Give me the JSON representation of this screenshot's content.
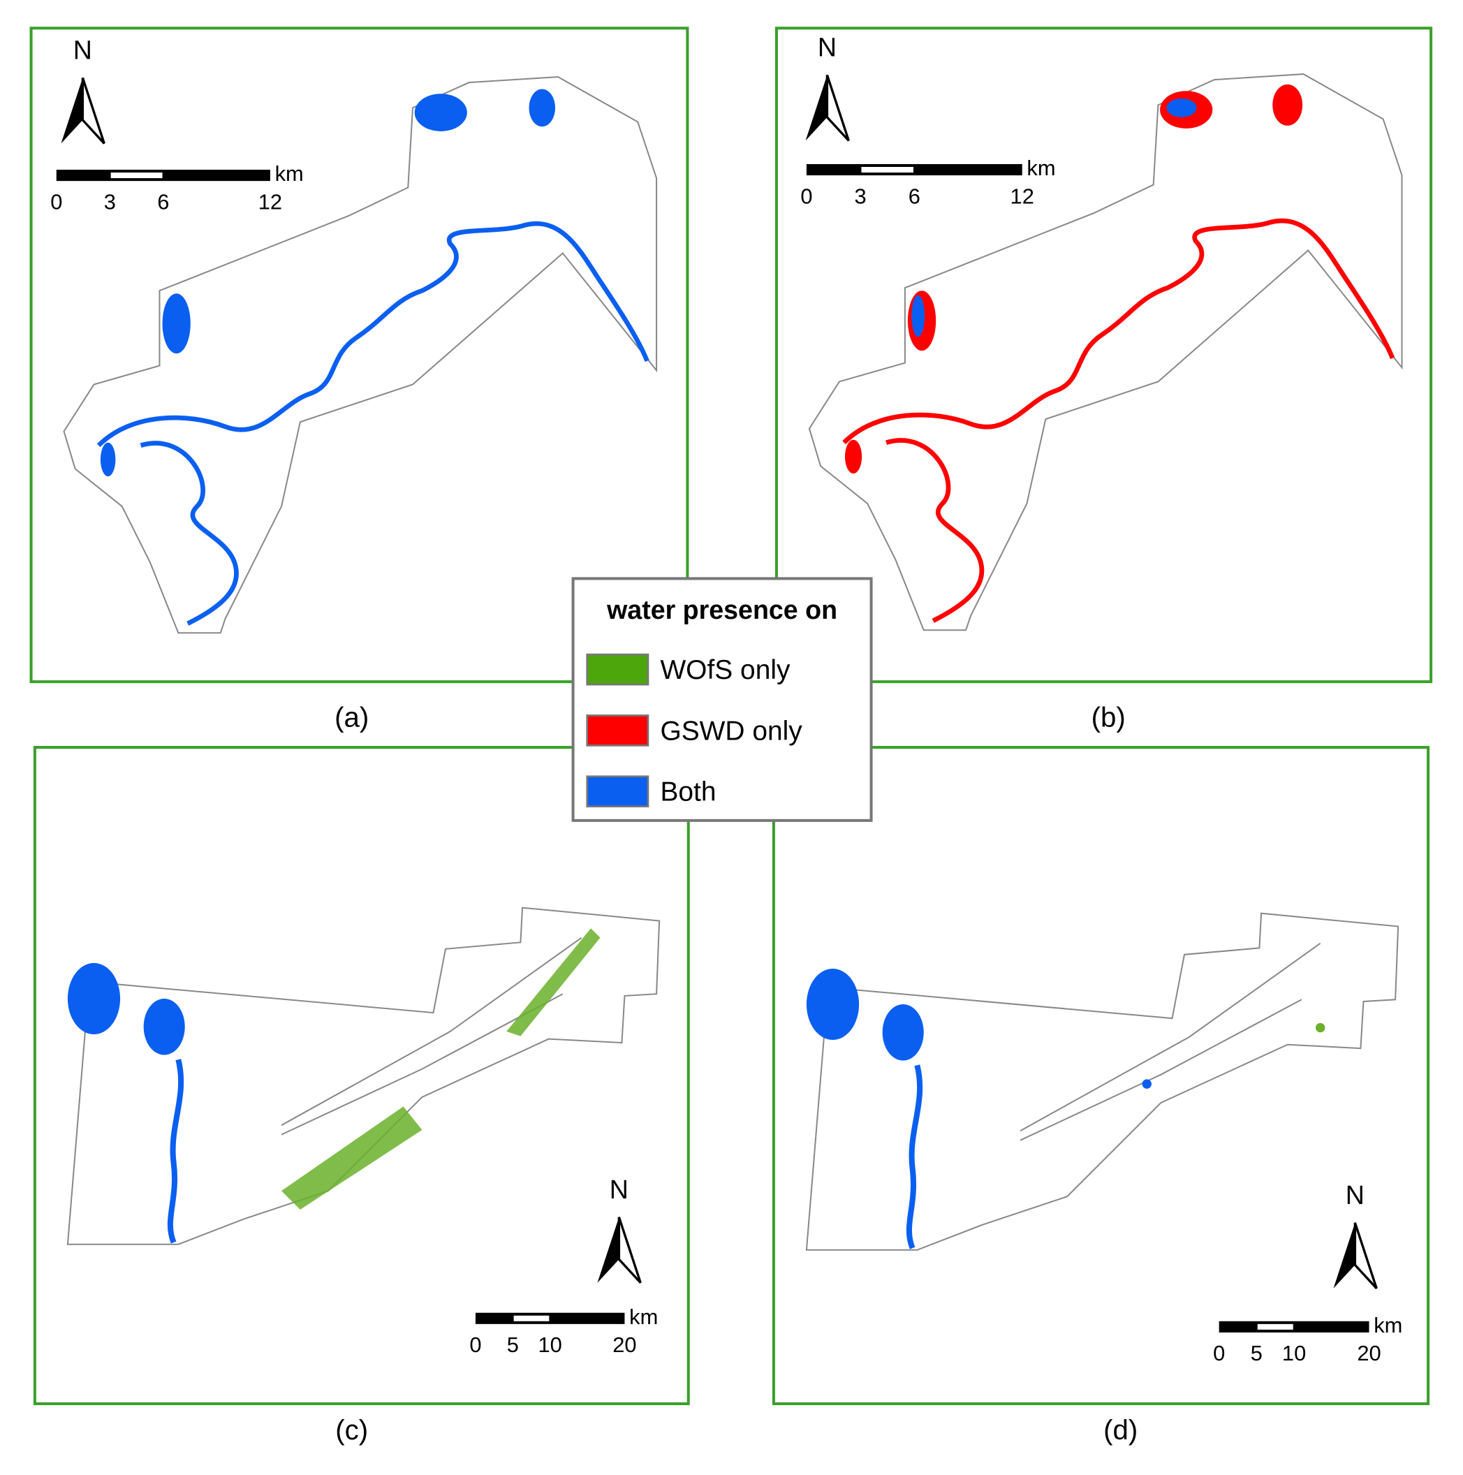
{
  "legend": {
    "title": "water presence on",
    "items": [
      {
        "label": "WOfS only",
        "color": "#4ea60d"
      },
      {
        "label": "GSWD only",
        "color": "#ff0000"
      },
      {
        "label": "Both",
        "color": "#0a5ff0"
      }
    ]
  },
  "panels": [
    {
      "label": "(a)",
      "north": "N",
      "scale": {
        "ticks": [
          "0",
          "3",
          "6",
          "12"
        ],
        "unit": "km"
      }
    },
    {
      "label": "(b)",
      "north": "N",
      "scale": {
        "ticks": [
          "0",
          "3",
          "6",
          "12"
        ],
        "unit": "km"
      }
    },
    {
      "label": "(c)",
      "north": "N",
      "scale": {
        "ticks": [
          "0",
          "5",
          "10",
          "20"
        ],
        "unit": "km"
      }
    },
    {
      "label": "(d)",
      "north": "N",
      "scale": {
        "ticks": [
          "0",
          "5",
          "10",
          "20"
        ],
        "unit": "km"
      }
    }
  ]
}
